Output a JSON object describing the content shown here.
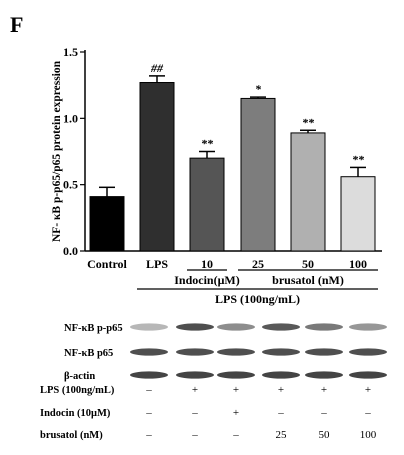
{
  "panel_label": "F",
  "chart_data": {
    "type": "bar",
    "categories": [
      "Control",
      "LPS",
      "10",
      "25",
      "50",
      "100"
    ],
    "values": [
      0.41,
      1.27,
      0.7,
      1.15,
      0.89,
      0.56
    ],
    "errors": [
      0.07,
      0.05,
      0.05,
      0.01,
      0.02,
      0.07
    ],
    "significance": [
      "",
      "##",
      "**",
      "*",
      "**",
      "**"
    ],
    "bar_colors": [
      "#000000",
      "#2f2f2f",
      "#555555",
      "#7d7d7d",
      "#b0b0b0",
      "#dcdcdc"
    ],
    "title": "",
    "xlabel": "",
    "ylabel": "NF- κB p-p65/p65 protein expression",
    "ylim": [
      0,
      1.5
    ],
    "yticks": [
      "0.0",
      "0.5",
      "1.0",
      "1.5"
    ],
    "grid": false,
    "groups": [
      {
        "label": "Indocin(μM)",
        "from": 2,
        "to": 2
      },
      {
        "label": "brusatol (nM)",
        "from": 3,
        "to": 5
      },
      {
        "label": "LPS (100ng/mL)",
        "from": 1,
        "to": 5
      }
    ]
  },
  "blot": {
    "bands": [
      {
        "label": "NF-κB p-p65",
        "intensity": [
          0.35,
          0.85,
          0.55,
          0.8,
          0.65,
          0.5
        ]
      },
      {
        "label": "NF-κB p65",
        "intensity": [
          0.85,
          0.85,
          0.85,
          0.85,
          0.85,
          0.85
        ]
      },
      {
        "label": "β-actin",
        "intensity": [
          0.9,
          0.9,
          0.9,
          0.9,
          0.9,
          0.9
        ]
      }
    ],
    "treatments": [
      {
        "label": "LPS (100ng/mL)",
        "values": [
          "–",
          "+",
          "+",
          "+",
          "+",
          "+"
        ]
      },
      {
        "label": "Indocin (10μM)",
        "values": [
          "–",
          "–",
          "+",
          "–",
          "–",
          "–"
        ]
      },
      {
        "label": "brusatol (nM)",
        "values": [
          "–",
          "–",
          "–",
          "25",
          "50",
          "100"
        ]
      }
    ]
  }
}
